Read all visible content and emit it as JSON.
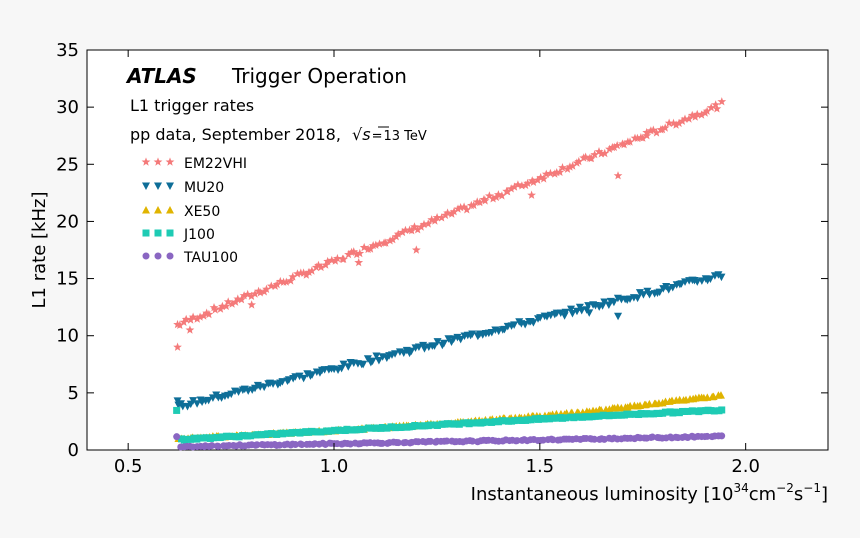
{
  "chart_data": {
    "type": "scatter",
    "experiment": "ATLAS",
    "title": "Trigger Operation",
    "subtitle_1": "L1 trigger rates",
    "subtitle_2_prefix": "pp data, September 2018,",
    "subtitle_2_suffix": "13 TeV",
    "sqrt_symbol": "√",
    "s_symbol": "s",
    "equals_symbol": "=",
    "xlabel_main": "Instantaneous luminosity [10",
    "xlabel_exp1": "34",
    "xlabel_cm": "cm",
    "xlabel_exp2": "−2",
    "xlabel_s": "s",
    "xlabel_exp3": "−1",
    "xlabel_close": "]",
    "ylabel": "L1 rate [kHz]",
    "xlim": [
      0.4,
      2.2
    ],
    "ylim": [
      0,
      35
    ],
    "x_ticks": [
      0.5,
      1.0,
      1.5,
      2.0
    ],
    "x_tick_labels": [
      "0.5",
      "1.0",
      "1.5",
      "2.0"
    ],
    "y_ticks": [
      0,
      5,
      10,
      15,
      20,
      25,
      30,
      35
    ],
    "y_tick_labels": [
      "0",
      "5",
      "10",
      "15",
      "20",
      "25",
      "30",
      "35"
    ],
    "legend_position": "upper-left",
    "x_range_data": [
      0.62,
      1.94
    ],
    "series": [
      {
        "name": "EM22VHI",
        "marker": "star",
        "color": "#f47a7a",
        "slope": 14.6,
        "intercept": 1.9,
        "outliers": [
          [
            0.65,
            10.5
          ],
          [
            0.8,
            12.7
          ],
          [
            1.06,
            16.4
          ],
          [
            1.2,
            17.5
          ],
          [
            1.48,
            22.3
          ],
          [
            1.69,
            24.0
          ],
          [
            1.76,
            27.5
          ]
        ],
        "x_start": 0.62,
        "y_start": 9.0
      },
      {
        "name": "MU20",
        "marker": "triangle-down",
        "color": "#0e6e98",
        "slope": 8.7,
        "intercept": -1.6,
        "outliers": [
          [
            1.35,
            10.0
          ],
          [
            1.62,
            12.0
          ],
          [
            1.69,
            11.7
          ]
        ],
        "x_start": 0.62,
        "y_start": 4.3
      },
      {
        "name": "XE50",
        "marker": "triangle-up",
        "color": "#e0b400",
        "curve": [
          [
            0.62,
            1.0
          ],
          [
            1.0,
            1.7
          ],
          [
            1.3,
            2.4
          ],
          [
            1.6,
            3.3
          ],
          [
            1.94,
            4.8
          ]
        ]
      },
      {
        "name": "J100",
        "marker": "square",
        "color": "#1ecbb4",
        "curve": [
          [
            0.62,
            0.9
          ],
          [
            1.0,
            1.7
          ],
          [
            1.3,
            2.3
          ],
          [
            1.6,
            2.9
          ],
          [
            1.94,
            3.5
          ]
        ]
      },
      {
        "name": "TAU100",
        "marker": "circle",
        "color": "#8a66c2",
        "curve": [
          [
            0.62,
            0.3
          ],
          [
            1.0,
            0.55
          ],
          [
            1.3,
            0.75
          ],
          [
            1.6,
            0.95
          ],
          [
            1.94,
            1.2
          ]
        ]
      }
    ]
  }
}
